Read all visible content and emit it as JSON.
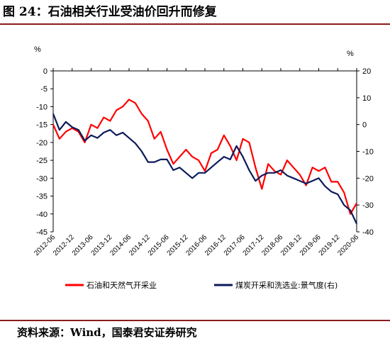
{
  "figure": {
    "title": "图 24：石油相关行业受油价回升而修复",
    "source": "资料来源：Wind，国泰君安证券研究"
  },
  "chart_data": {
    "type": "line",
    "left_axis": {
      "unit": "%",
      "ylim": [
        -45,
        0
      ],
      "ticks": [
        0,
        -5,
        -10,
        -15,
        -20,
        -25,
        -30,
        -35,
        -40,
        -45
      ]
    },
    "right_axis": {
      "unit": "%",
      "ylim": [
        -40,
        20
      ],
      "ticks": [
        20,
        10,
        0,
        -10,
        -20,
        -30,
        -40
      ]
    },
    "x_start": "2012-06",
    "x_end": "2020-06",
    "x_ticks": [
      "2012-06",
      "2012-12",
      "2013-06",
      "2013-12",
      "2014-06",
      "2014-12",
      "2015-06",
      "2015-12",
      "2016-06",
      "2016-12",
      "2017-06",
      "2017-12",
      "2018-06",
      "2018-12",
      "2019-06",
      "2019-12",
      "2020-06"
    ],
    "grid": false,
    "legend_position": "bottom",
    "series": [
      {
        "name": "石油和天然气开采业",
        "axis": "left",
        "color": "#ff0000",
        "x": [
          "2012-06",
          "2012-08",
          "2012-10",
          "2012-12",
          "2013-02",
          "2013-04",
          "2013-06",
          "2013-08",
          "2013-10",
          "2013-12",
          "2014-02",
          "2014-04",
          "2014-06",
          "2014-08",
          "2014-10",
          "2014-12",
          "2015-02",
          "2015-04",
          "2015-06",
          "2015-08",
          "2015-10",
          "2015-12",
          "2016-02",
          "2016-04",
          "2016-06",
          "2016-08",
          "2016-10",
          "2016-12",
          "2017-02",
          "2017-04",
          "2017-06",
          "2017-08",
          "2017-10",
          "2017-12",
          "2018-02",
          "2018-04",
          "2018-06",
          "2018-08",
          "2018-10",
          "2018-12",
          "2019-02",
          "2019-04",
          "2019-06",
          "2019-08",
          "2019-10",
          "2019-12",
          "2020-02",
          "2020-04",
          "2020-06"
        ],
        "values": [
          -15,
          -19,
          -17,
          -16,
          -17,
          -20,
          -15,
          -16,
          -13,
          -14,
          -11,
          -10,
          -8,
          -9,
          -12,
          -14,
          -19,
          -17,
          -22,
          -26,
          -24,
          -22,
          -24,
          -25,
          -28,
          -23,
          -22,
          -18,
          -21,
          -25,
          -19,
          -20,
          -27,
          -33,
          -26,
          -28,
          -29,
          -25,
          -27,
          -29,
          -32,
          -27,
          -28,
          -27,
          -31,
          -31,
          -34,
          -40,
          -37
        ]
      },
      {
        "name": "煤炭开采和洗选业:景气度(右)",
        "axis": "right",
        "color": "#0c1a5a",
        "x": [
          "2012-06",
          "2012-08",
          "2012-10",
          "2012-12",
          "2013-02",
          "2013-04",
          "2013-06",
          "2013-08",
          "2013-10",
          "2013-12",
          "2014-02",
          "2014-04",
          "2014-06",
          "2014-08",
          "2014-10",
          "2014-12",
          "2015-02",
          "2015-04",
          "2015-06",
          "2015-08",
          "2015-10",
          "2015-12",
          "2016-02",
          "2016-04",
          "2016-06",
          "2016-08",
          "2016-10",
          "2016-12",
          "2017-02",
          "2017-04",
          "2017-06",
          "2017-08",
          "2017-10",
          "2017-12",
          "2018-02",
          "2018-04",
          "2018-06",
          "2018-08",
          "2018-10",
          "2018-12",
          "2019-02",
          "2019-04",
          "2019-06",
          "2019-08",
          "2019-10",
          "2019-12",
          "2020-02",
          "2020-04",
          "2020-06"
        ],
        "values": [
          4,
          -2,
          1,
          -1,
          -2,
          -6,
          -4,
          -5,
          -3,
          -2,
          -4,
          -3,
          -5,
          -7,
          -10,
          -14,
          -14,
          -13,
          -13,
          -17,
          -16,
          -18,
          -20,
          -18,
          -18,
          -16,
          -14,
          -12,
          -13,
          -8,
          -12,
          -17,
          -21,
          -19,
          -18,
          -18,
          -17,
          -19,
          -20,
          -21,
          -22,
          -21,
          -20,
          -23,
          -25,
          -26,
          -30,
          -32,
          -37
        ]
      }
    ]
  }
}
